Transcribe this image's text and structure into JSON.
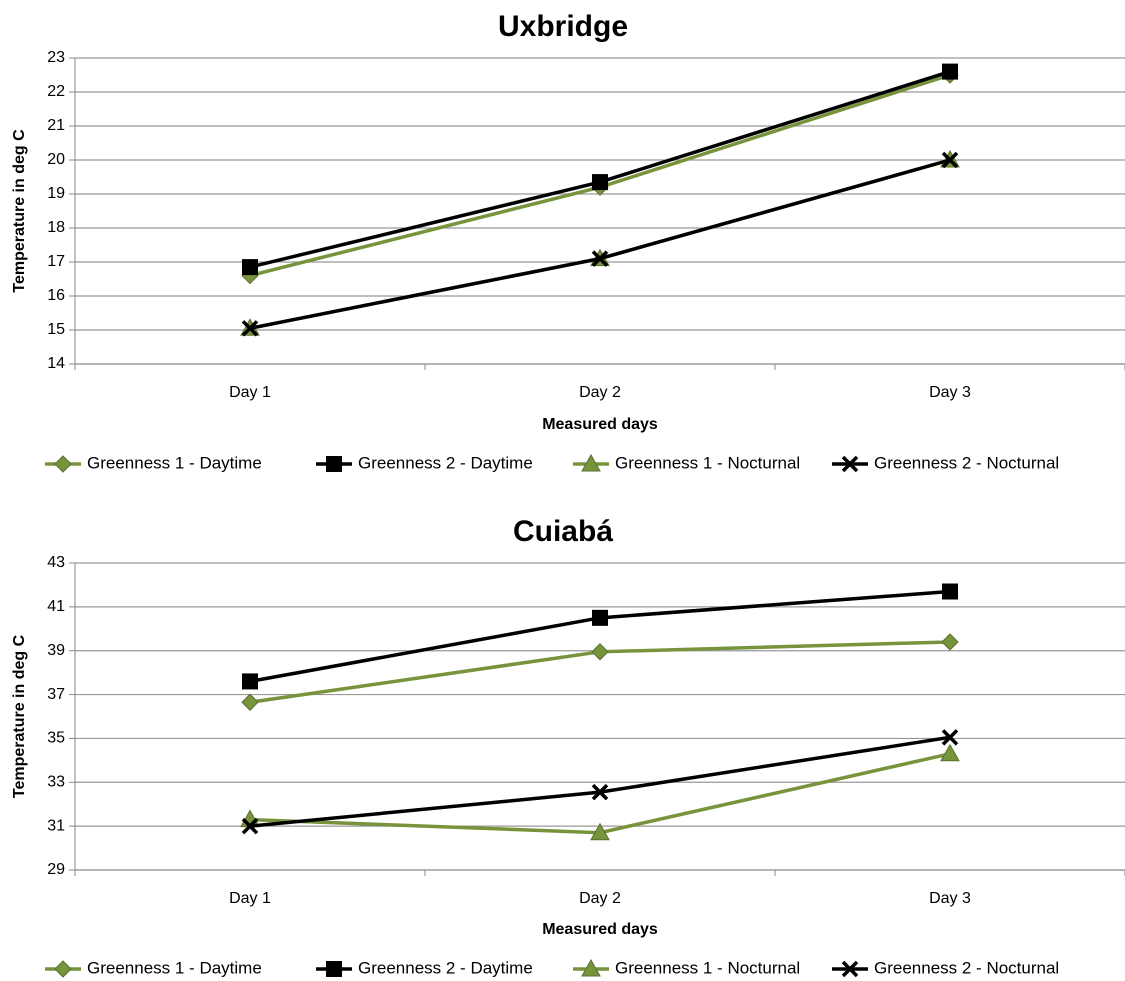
{
  "chart_data": [
    {
      "type": "line",
      "title": "Uxbridge",
      "x_label": "Measured days",
      "y_label": "Temperature in deg C",
      "categories": [
        "Day 1",
        "Day 2",
        "Day 3"
      ],
      "ylim": [
        14,
        23
      ],
      "yticks": [
        14,
        15,
        16,
        17,
        18,
        19,
        20,
        21,
        22,
        23
      ],
      "grid": true,
      "legend": "bottom",
      "series": [
        {
          "name": "Greenness 1 - Daytime",
          "color": "#77933c",
          "marker": "diamond",
          "values": [
            16.6,
            19.2,
            22.5
          ]
        },
        {
          "name": "Greenness 2 - Daytime",
          "color": "#000000",
          "marker": "square",
          "values": [
            16.85,
            19.35,
            22.6
          ]
        },
        {
          "name": "Greenness 1 - Nocturnal",
          "color": "#77933c",
          "marker": "triangle",
          "values": [
            15.05,
            17.1,
            20.0
          ]
        },
        {
          "name": "Greenness 2 - Nocturnal",
          "color": "#000000",
          "marker": "x",
          "values": [
            15.05,
            17.1,
            20.0
          ]
        }
      ]
    },
    {
      "type": "line",
      "title": "Cuiabá",
      "x_label": "Measured days",
      "y_label": "Temperature in deg C",
      "categories": [
        "Day 1",
        "Day 2",
        "Day 3"
      ],
      "ylim": [
        29,
        43
      ],
      "yticks": [
        29,
        31,
        33,
        35,
        37,
        39,
        41,
        43
      ],
      "grid": true,
      "legend": "bottom",
      "series": [
        {
          "name": "Greenness 1 - Daytime",
          "color": "#77933c",
          "marker": "diamond",
          "values": [
            36.65,
            38.95,
            39.4
          ]
        },
        {
          "name": "Greenness 2 - Daytime",
          "color": "#000000",
          "marker": "square",
          "values": [
            37.6,
            40.5,
            41.7
          ]
        },
        {
          "name": "Greenness 1 - Nocturnal",
          "color": "#77933c",
          "marker": "triangle",
          "values": [
            31.3,
            30.7,
            34.3
          ]
        },
        {
          "name": "Greenness 2 - Nocturnal",
          "color": "#000000",
          "marker": "x",
          "values": [
            31.0,
            32.55,
            35.05
          ]
        }
      ]
    }
  ]
}
